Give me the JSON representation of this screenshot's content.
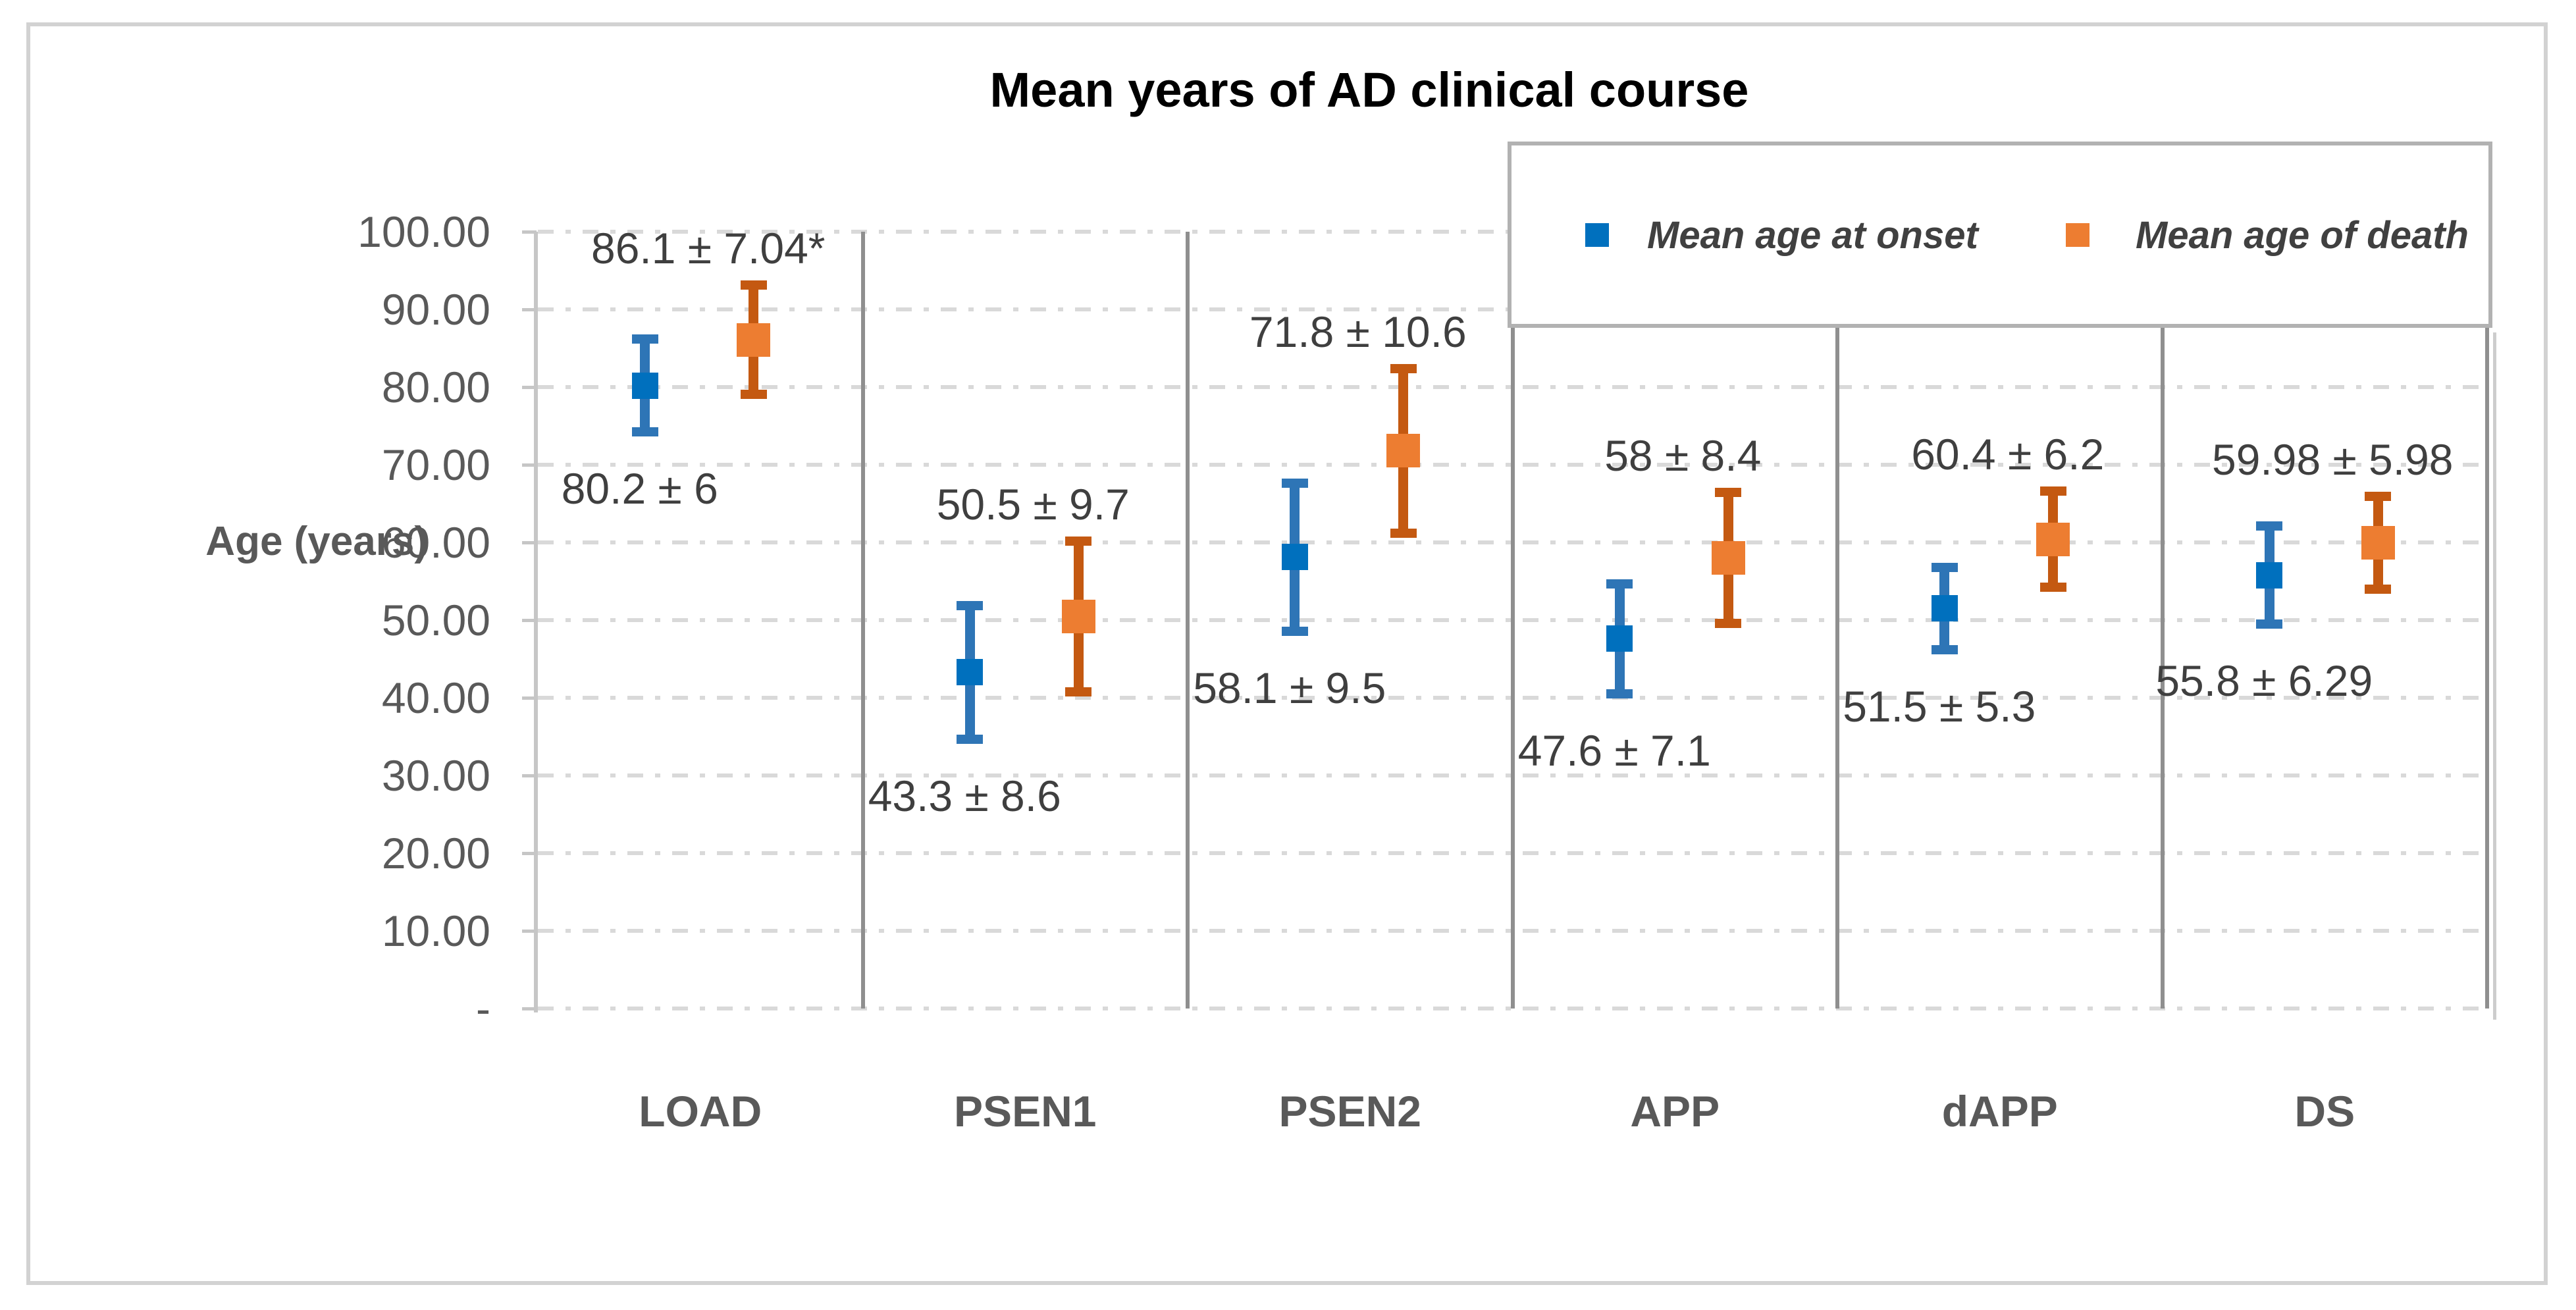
{
  "title": "Mean years of AD clinical course",
  "y_axis": {
    "label": "Age (years)",
    "tick_labels": [
      "100.00",
      "90.00",
      "80.00",
      "70.00",
      "60.00",
      "50.00",
      "40.00",
      "30.00",
      "20.00",
      "10.00",
      "-"
    ],
    "min": 0,
    "max": 100,
    "step": 10
  },
  "legend": {
    "items": [
      {
        "label": "Mean age at onset",
        "marker": "square",
        "color": "#0070BE"
      },
      {
        "label": "Mean age of death",
        "marker": "square",
        "color": "#ED7D31"
      }
    ]
  },
  "chart_data": {
    "type": "scatter",
    "title": "Mean years of AD clinical course",
    "xlabel": "",
    "ylabel": "Age (years)",
    "ylim": [
      0,
      100
    ],
    "grid": "horizontal-dash-dot",
    "legend_position": "top-right-inside",
    "categories": [
      "LOAD",
      "PSEN1",
      "PSEN2",
      "APP",
      "dAPP",
      "DS"
    ],
    "series": [
      {
        "name": "Mean age at onset",
        "marker": "square",
        "marker_color": "#0070BE",
        "error_bar_color": "#2E75B6",
        "label_position": "below",
        "means": [
          80.2,
          43.3,
          58.1,
          47.6,
          51.5,
          55.8
        ],
        "sd": [
          6,
          8.6,
          9.5,
          7.1,
          5.3,
          6.29
        ],
        "data_labels": [
          "80.2 ± 6",
          "43.3 ± 8.6",
          "58.1 ± 9.5",
          "47.6 ± 7.1",
          "51.5 ± 5.3",
          "55.8 ± 6.29"
        ]
      },
      {
        "name": "Mean age of death",
        "marker": "square",
        "marker_color": "#ED7D31",
        "error_bar_color": "#C45911",
        "label_position": "above",
        "means": [
          86.1,
          50.5,
          71.8,
          58,
          60.4,
          59.98
        ],
        "sd": [
          7.04,
          9.7,
          10.6,
          8.4,
          6.2,
          5.98
        ],
        "data_labels": [
          "86.1 ± 7.04*",
          "50.5 ± 9.7",
          "71.8 ± 10.6",
          "58 ± 8.4",
          "60.4 ± 6.2",
          "59.98 ± 5.98"
        ]
      }
    ]
  }
}
